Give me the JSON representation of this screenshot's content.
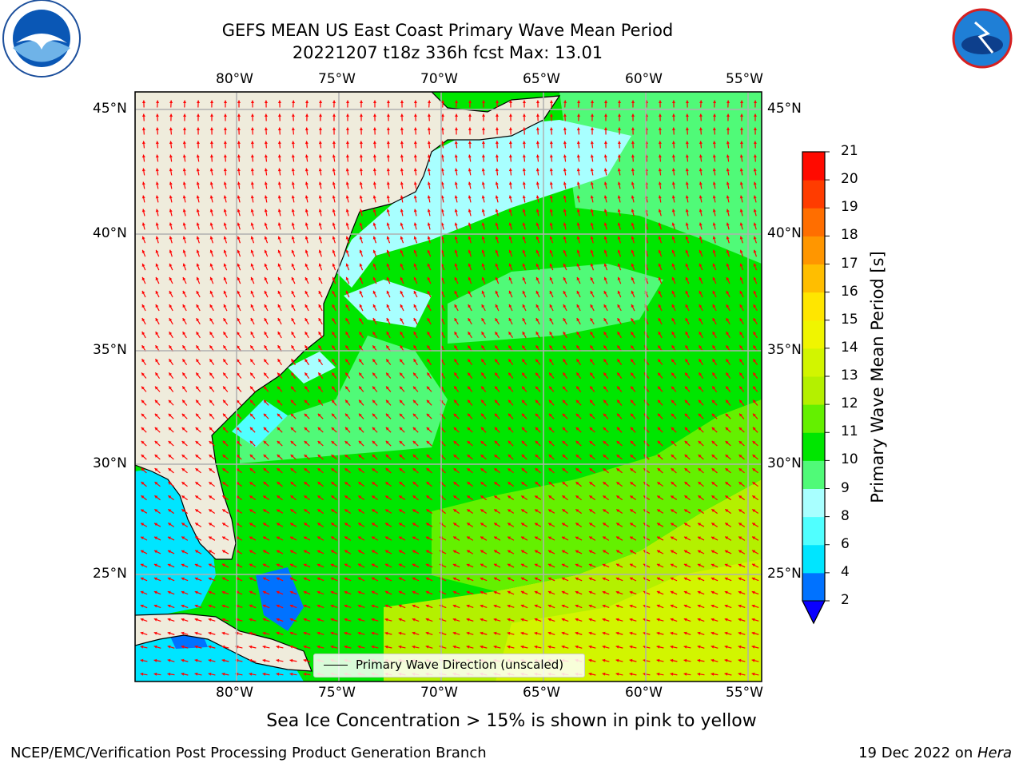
{
  "header": {
    "title_line1": "GEFS MEAN US East Coast Primary Wave Mean Period",
    "title_line2": "20221207 t18z 336h fcst   Max: 13.01"
  },
  "logos": {
    "left": "NOAA",
    "right": "NATIONAL WEATHER SERVICE"
  },
  "map": {
    "lon_ticks_top": [
      "80°W",
      "75°W",
      "70°W",
      "65°W",
      "60°W",
      "55°W"
    ],
    "lon_ticks_bottom": [
      "80°W",
      "75°W",
      "70°W",
      "65°W",
      "60°W",
      "55°W"
    ],
    "lat_ticks_left": [
      "45°N",
      "40°N",
      "35°N",
      "30°N",
      "25°N"
    ],
    "lat_ticks_right": [
      "45°N",
      "40°N",
      "35°N",
      "30°N",
      "25°N"
    ],
    "legend_label": "Primary Wave Direction (unscaled)",
    "arrow_color": "#ff0000",
    "land_color": "#efecdc"
  },
  "colorbar": {
    "label": "Primary Wave Mean Period [s]",
    "levels": [
      "2",
      "4",
      "6",
      "8",
      "9",
      "10",
      "11",
      "12",
      "13",
      "14",
      "15",
      "16",
      "17",
      "18",
      "19",
      "20",
      "21"
    ],
    "colors": [
      "#0072ff",
      "#00e5ff",
      "#50ffff",
      "#a8ffff",
      "#50fa78",
      "#00e600",
      "#64f000",
      "#b4f000",
      "#d2f500",
      "#f0f500",
      "#ffe600",
      "#ffbe00",
      "#ff9600",
      "#ff6e00",
      "#ff3c00",
      "#ff0a00"
    ],
    "under_color": "#0a00ff"
  },
  "footer": {
    "sea_ice_note": "Sea Ice Concentration > 15% is shown in pink to yellow",
    "left": "NCEP/EMC/Verification Post Processing Product Generation Branch",
    "right_prefix": "19 Dec 2022 on ",
    "right_host": "Hera"
  }
}
